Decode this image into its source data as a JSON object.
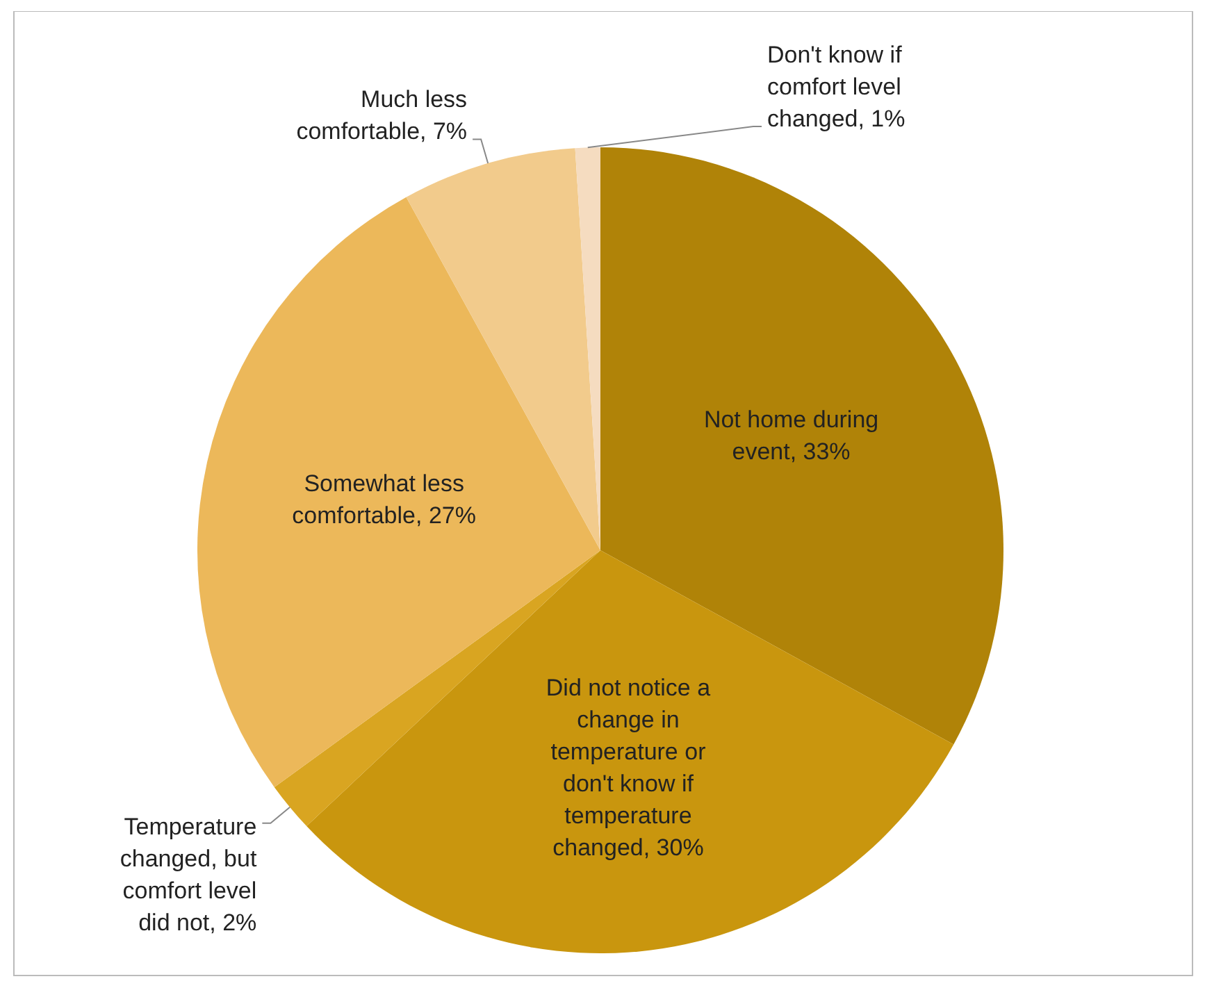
{
  "chart_data": {
    "type": "pie",
    "categories": [
      "Not home during event",
      "Did not notice a change in temperature or don't know if temperature changed",
      "Temperature changed, but comfort level did not",
      "Somewhat less comfortable",
      "Much less comfortable",
      "Don't know if comfort level changed"
    ],
    "values": [
      33,
      30,
      2,
      27,
      7,
      1
    ],
    "colors": [
      "#b08308",
      "#c9960e",
      "#d9a521",
      "#ecb85a",
      "#f2cb8c",
      "#f5dcc0"
    ],
    "value_labels": [
      ", 33%",
      ", 30%",
      ", 2%",
      ", 27%",
      ", 7%",
      ", 1%"
    ]
  }
}
